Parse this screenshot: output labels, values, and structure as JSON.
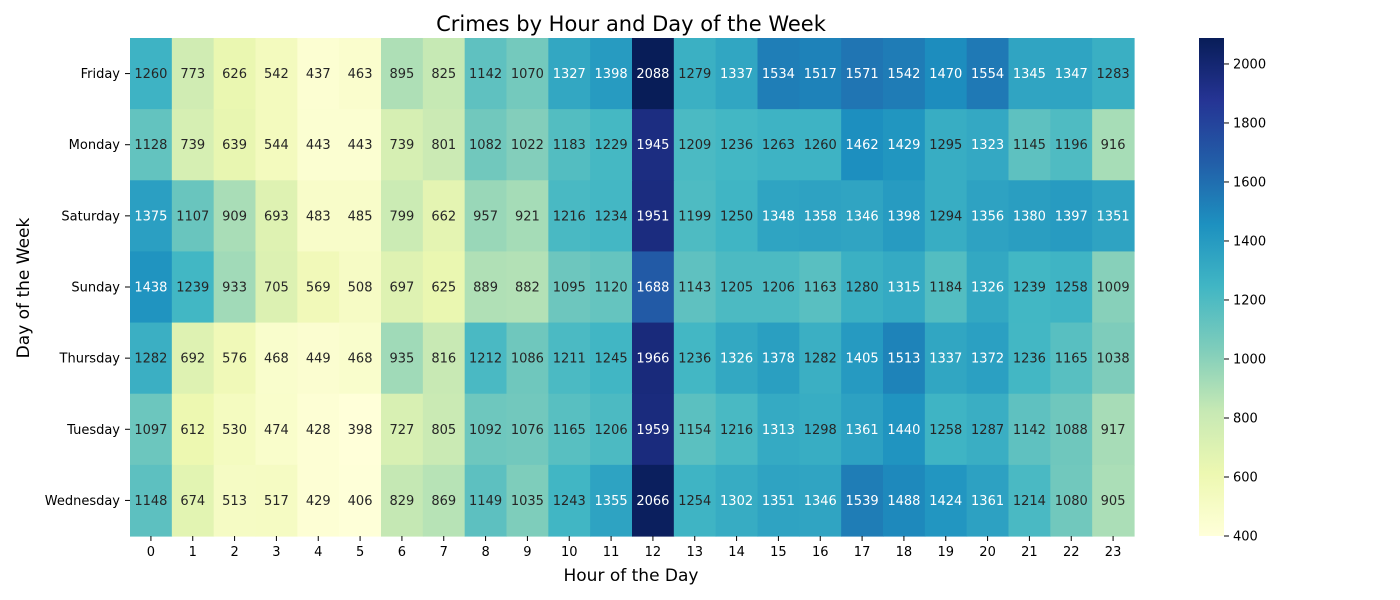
{
  "chart_data": {
    "type": "heatmap",
    "title": "Crimes by Hour and Day of the Week",
    "xlabel": "Hour of the Day",
    "ylabel": "Day of the Week",
    "x": [
      "0",
      "1",
      "2",
      "3",
      "4",
      "5",
      "6",
      "7",
      "8",
      "9",
      "10",
      "11",
      "12",
      "13",
      "14",
      "15",
      "16",
      "17",
      "18",
      "19",
      "20",
      "21",
      "22",
      "23"
    ],
    "y": [
      "Friday",
      "Monday",
      "Saturday",
      "Sunday",
      "Thursday",
      "Tuesday",
      "Wednesday"
    ],
    "values": [
      [
        1260,
        773,
        626,
        542,
        437,
        463,
        895,
        825,
        1142,
        1070,
        1327,
        1398,
        2088,
        1279,
        1337,
        1534,
        1517,
        1571,
        1542,
        1470,
        1554,
        1345,
        1347,
        1283
      ],
      [
        1128,
        739,
        639,
        544,
        443,
        443,
        739,
        801,
        1082,
        1022,
        1183,
        1229,
        1945,
        1209,
        1236,
        1263,
        1260,
        1462,
        1429,
        1295,
        1323,
        1145,
        1196,
        916
      ],
      [
        1375,
        1107,
        909,
        693,
        483,
        485,
        799,
        662,
        957,
        921,
        1216,
        1234,
        1951,
        1199,
        1250,
        1348,
        1358,
        1346,
        1398,
        1294,
        1356,
        1380,
        1397,
        1351
      ],
      [
        1438,
        1239,
        933,
        705,
        569,
        508,
        697,
        625,
        889,
        882,
        1095,
        1120,
        1688,
        1143,
        1205,
        1206,
        1163,
        1280,
        1315,
        1184,
        1326,
        1239,
        1258,
        1009
      ],
      [
        1282,
        692,
        576,
        468,
        449,
        468,
        935,
        816,
        1212,
        1086,
        1211,
        1245,
        1966,
        1236,
        1326,
        1378,
        1282,
        1405,
        1513,
        1337,
        1372,
        1236,
        1165,
        1038
      ],
      [
        1097,
        612,
        530,
        474,
        428,
        398,
        727,
        805,
        1092,
        1076,
        1165,
        1206,
        1959,
        1154,
        1216,
        1313,
        1298,
        1361,
        1440,
        1258,
        1287,
        1142,
        1088,
        917
      ],
      [
        1148,
        674,
        513,
        517,
        429,
        406,
        829,
        869,
        1149,
        1035,
        1243,
        1355,
        2066,
        1254,
        1302,
        1351,
        1346,
        1539,
        1488,
        1424,
        1361,
        1214,
        1080,
        905
      ]
    ],
    "colormap": "YlGnBu",
    "colorbar": {
      "range": [
        400,
        2088
      ],
      "ticks": [
        400,
        600,
        800,
        1000,
        1200,
        1400,
        1600,
        1800,
        2000
      ]
    },
    "annotations": "cell values shown in each cell",
    "grid": false
  }
}
